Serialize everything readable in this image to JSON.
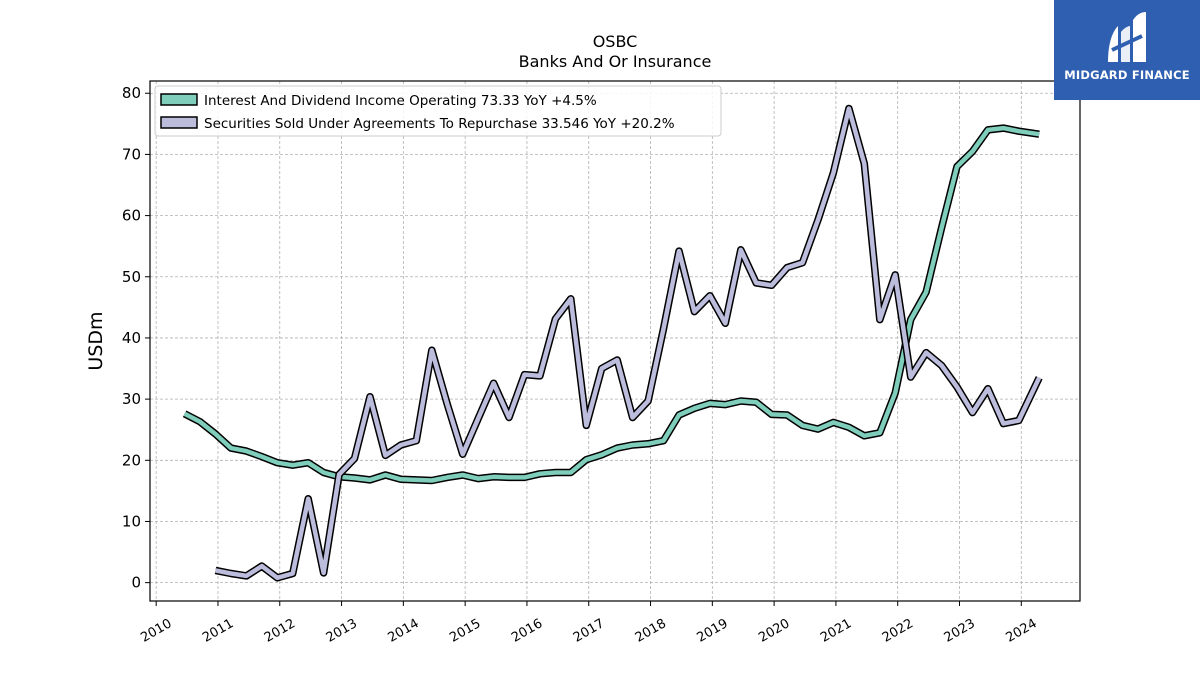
{
  "chart_data": {
    "type": "line",
    "title": "OSBC",
    "subtitle": "Banks And Or Insurance",
    "ylabel": "USDm",
    "xlabel": "",
    "ylim": [
      -3,
      82
    ],
    "xlim": [
      2009.9,
      2024.95
    ],
    "yticks": [
      0,
      10,
      20,
      30,
      40,
      50,
      60,
      70,
      80
    ],
    "xticks": [
      2010,
      2011,
      2012,
      2013,
      2014,
      2015,
      2016,
      2017,
      2018,
      2019,
      2020,
      2021,
      2022,
      2023,
      2024
    ],
    "grid": true,
    "legend_position": "top-left",
    "series": [
      {
        "name": "Interest And Dividend Income Operating  73.33 YoY +4.5%",
        "color": "#7fcdbb",
        "x": [
          2010.46,
          2010.71,
          2010.96,
          2011.21,
          2011.46,
          2011.71,
          2011.96,
          2012.21,
          2012.46,
          2012.71,
          2012.96,
          2013.21,
          2013.46,
          2013.71,
          2013.96,
          2014.21,
          2014.46,
          2014.71,
          2014.96,
          2015.21,
          2015.46,
          2015.71,
          2015.96,
          2016.21,
          2016.46,
          2016.71,
          2016.96,
          2017.21,
          2017.46,
          2017.71,
          2017.96,
          2018.21,
          2018.46,
          2018.71,
          2018.96,
          2019.21,
          2019.46,
          2019.71,
          2019.96,
          2020.21,
          2020.46,
          2020.71,
          2020.96,
          2021.21,
          2021.46,
          2021.71,
          2021.96,
          2022.21,
          2022.46,
          2022.71,
          2022.96,
          2023.21,
          2023.46,
          2023.71,
          2023.96,
          2024.29
        ],
        "y": [
          27.6,
          26.3,
          24.3,
          22.0,
          21.5,
          20.6,
          19.6,
          19.2,
          19.6,
          18.0,
          17.3,
          17.1,
          16.8,
          17.6,
          16.9,
          16.8,
          16.7,
          17.2,
          17.6,
          17.0,
          17.3,
          17.2,
          17.2,
          17.8,
          18.0,
          18.0,
          20.1,
          20.9,
          22.0,
          22.5,
          22.7,
          23.2,
          27.4,
          28.5,
          29.3,
          29.1,
          29.7,
          29.5,
          27.5,
          27.4,
          25.7,
          25.1,
          26.2,
          25.4,
          24.0,
          24.5,
          31.0,
          43.0,
          47.5,
          58.0,
          68.0,
          70.5,
          74.0,
          74.3,
          73.8,
          73.3
        ]
      },
      {
        "name": "Securities Sold Under Agreements To Repurchase  33.546 YoY +20.2%",
        "color": "#bcbddc",
        "x": [
          2010.96,
          2011.21,
          2011.46,
          2011.71,
          2011.96,
          2012.21,
          2012.46,
          2012.71,
          2012.96,
          2013.21,
          2013.46,
          2013.71,
          2013.96,
          2014.21,
          2014.46,
          2014.71,
          2014.96,
          2015.21,
          2015.46,
          2015.71,
          2015.96,
          2016.21,
          2016.46,
          2016.71,
          2016.96,
          2017.21,
          2017.46,
          2017.71,
          2017.96,
          2018.21,
          2018.46,
          2018.71,
          2018.96,
          2019.21,
          2019.46,
          2019.71,
          2019.96,
          2020.21,
          2020.46,
          2020.71,
          2020.96,
          2021.21,
          2021.46,
          2021.71,
          2021.96,
          2022.21,
          2022.46,
          2022.71,
          2022.96,
          2023.21,
          2023.46,
          2023.71,
          2023.96,
          2024.29
        ],
        "y": [
          2.0,
          1.5,
          1.1,
          2.7,
          0.8,
          1.5,
          13.7,
          1.6,
          17.7,
          20.3,
          30.4,
          20.8,
          22.5,
          23.2,
          38.0,
          29.2,
          21.0,
          26.8,
          32.6,
          27.0,
          34.0,
          33.8,
          43.1,
          46.4,
          25.7,
          35.0,
          36.4,
          27.0,
          29.7,
          41.5,
          54.2,
          44.3,
          46.9,
          42.4,
          54.4,
          49.0,
          48.6,
          51.5,
          52.3,
          59.3,
          67.0,
          77.5,
          68.5,
          43.0,
          50.3,
          33.6,
          37.6,
          35.5,
          32.0,
          27.8,
          31.7,
          26.0,
          26.5,
          33.5
        ]
      }
    ]
  },
  "logo": {
    "text": "MIDGARD FINANCE",
    "background_color": "#2f5fb0",
    "text_color": "#ffffff"
  }
}
